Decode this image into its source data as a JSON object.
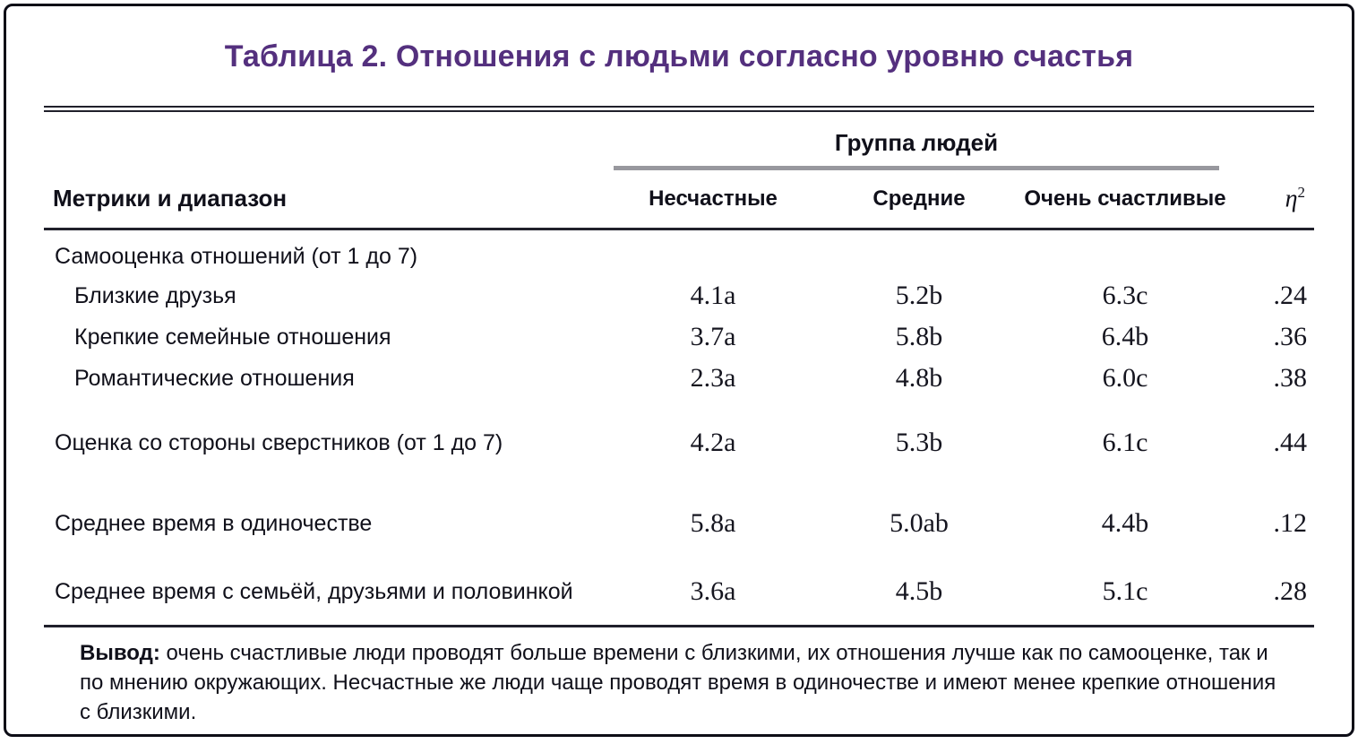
{
  "title": "Таблица 2. Отношения с людьми согласно уровню счастья",
  "colors": {
    "title_accent": "#54307e",
    "rule_dark": "#20202b",
    "group_underline_gray": "#98989e",
    "text": "#10101a"
  },
  "table": {
    "group_header": "Группа людей",
    "row_header_label": "Метрики и диапазон",
    "columns": [
      "Несчастные",
      "Средние",
      "Очень счастливые"
    ],
    "eta": {
      "symbol": "η",
      "sup": "2"
    },
    "rows": [
      {
        "label": "Самооценка отношений (от 1 до 7)",
        "indent": 0,
        "values": [
          "",
          "",
          "",
          ""
        ]
      },
      {
        "label": "Близкие друзья",
        "indent": 1,
        "values": [
          "4.1a",
          "5.2b",
          "6.3c",
          ".24"
        ]
      },
      {
        "label": "Крепкие семейные отношения",
        "indent": 1,
        "values": [
          "3.7a",
          "5.8b",
          "6.4b",
          ".36"
        ]
      },
      {
        "label": "Романтические отношения",
        "indent": 1,
        "values": [
          "2.3a",
          "4.8b",
          "6.0c",
          ".38"
        ]
      },
      {
        "label": "Оценка со стороны сверстников (от 1 до 7)",
        "indent": 0,
        "values": [
          "4.2a",
          "5.3b",
          "6.1c",
          ".44"
        ]
      },
      {
        "label": "Среднее время в одиночестве",
        "indent": 0,
        "values": [
          "5.8a",
          "5.0ab",
          "4.4b",
          ".12"
        ]
      },
      {
        "label": "Среднее время с семьёй, друзьями и половинкой",
        "indent": 0,
        "values": [
          "3.6a",
          "4.5b",
          "5.1c",
          ".28"
        ]
      }
    ]
  },
  "footer": {
    "lead": "Вывод:",
    "text": "очень счастливые люди проводят больше времени с близкими, их отношения лучше как по самооценке, так и по мнению окружающих. Несчастные же люди чаще проводят время в одиночестве и имеют менее крепкие отношения с близкими."
  },
  "chart_data": {
    "type": "table",
    "title": "Таблица 2. Отношения с людьми согласно уровню счастья",
    "column_group": "Группа людей",
    "columns": [
      "Метрики и диапазон",
      "Несчастные",
      "Средние",
      "Очень счастливые",
      "η2"
    ],
    "rows": [
      {
        "label": "Самооценка отношений (от 1 до 7)",
        "section": true,
        "values": [
          null,
          null,
          null,
          null
        ]
      },
      {
        "label": "Близкие друзья",
        "values": [
          "4.1a",
          "5.2b",
          "6.3c",
          ".24"
        ]
      },
      {
        "label": "Крепкие семейные отношения",
        "values": [
          "3.7a",
          "5.8b",
          "6.4b",
          ".36"
        ]
      },
      {
        "label": "Романтические отношения",
        "values": [
          "2.3a",
          "4.8b",
          "6.0c",
          ".38"
        ]
      },
      {
        "label": "Оценка со стороны сверстников (от 1 до 7)",
        "values": [
          "4.2a",
          "5.3b",
          "6.1c",
          ".44"
        ]
      },
      {
        "label": "Среднее время в одиночестве",
        "values": [
          "5.8a",
          "5.0ab",
          "4.4b",
          ".12"
        ]
      },
      {
        "label": "Среднее время с семьёй, друзьями и половинкой",
        "values": [
          "3.6a",
          "4.5b",
          "5.1c",
          ".28"
        ]
      }
    ],
    "note": "Вывод: очень счастливые люди проводят больше времени с близкими, их отношения лучше как по самооценке, так и по мнению окружающих. Несчастные же люди чаще проводят время в одиночестве и имеют менее крепкие отношения с близкими."
  }
}
